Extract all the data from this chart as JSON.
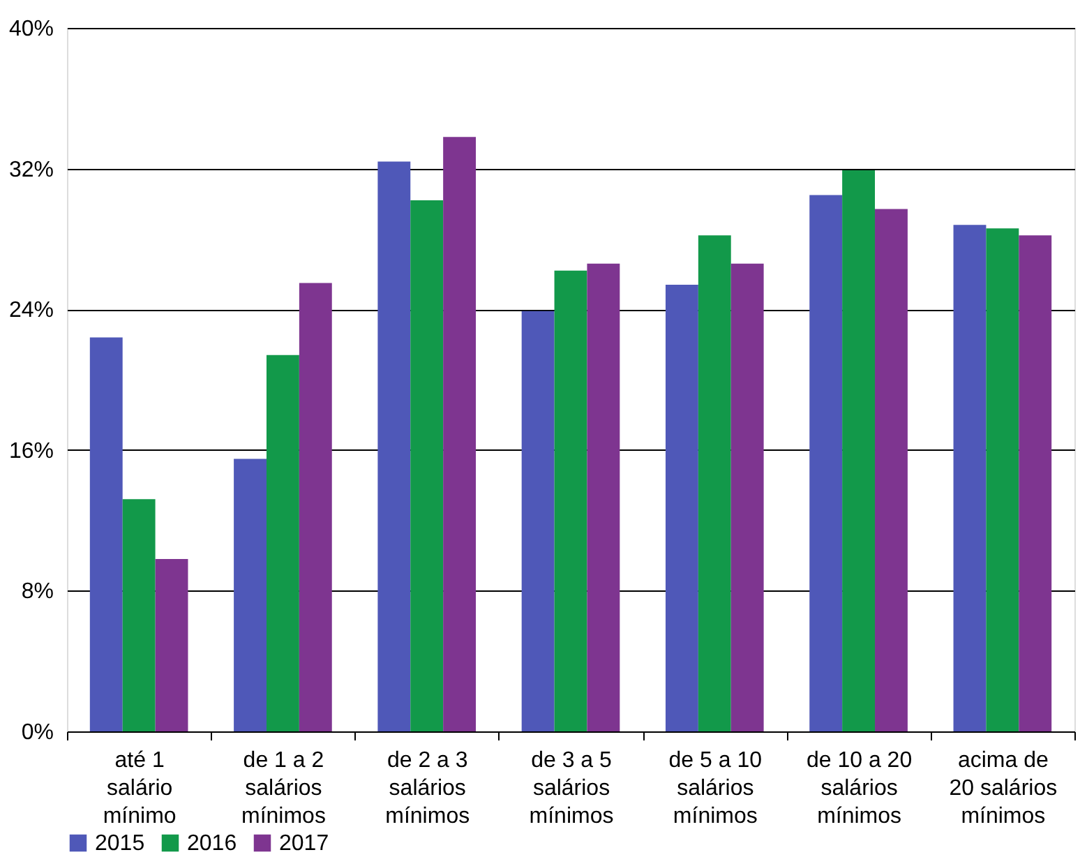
{
  "chart_data": {
    "type": "bar",
    "categories": [
      "até 1\nsalário\nmínimo",
      "de 1 a 2\nsalários\nmínimos",
      "de 2 a 3\nsalários\nmínimos",
      "de 3 a 5\nsalários\nmínimos",
      "de 5 a 10\nsalários\nmínimos",
      "de 10 a 20\nsalários\nmínimos",
      "acima de\n20 salários\nmínimos"
    ],
    "series": [
      {
        "name": "2015",
        "color": "#4f58b8",
        "values": [
          22.4,
          15.5,
          32.4,
          23.9,
          25.4,
          30.5,
          28.8
        ]
      },
      {
        "name": "2016",
        "color": "#12994a",
        "values": [
          13.2,
          21.4,
          30.2,
          26.2,
          28.2,
          31.9,
          28.6
        ]
      },
      {
        "name": "2017",
        "color": "#7e3590",
        "values": [
          9.8,
          25.5,
          33.8,
          26.6,
          26.6,
          29.7,
          28.2
        ]
      }
    ],
    "ylim": [
      0,
      40
    ],
    "yticks": [
      {
        "value": 0,
        "label": "0%"
      },
      {
        "value": 8,
        "label": "8%"
      },
      {
        "value": 16,
        "label": "16%"
      },
      {
        "value": 24,
        "label": "24%"
      },
      {
        "value": 32,
        "label": "32%"
      },
      {
        "value": 40,
        "label": "40%"
      }
    ],
    "grid": "y",
    "legend": "bottom"
  }
}
